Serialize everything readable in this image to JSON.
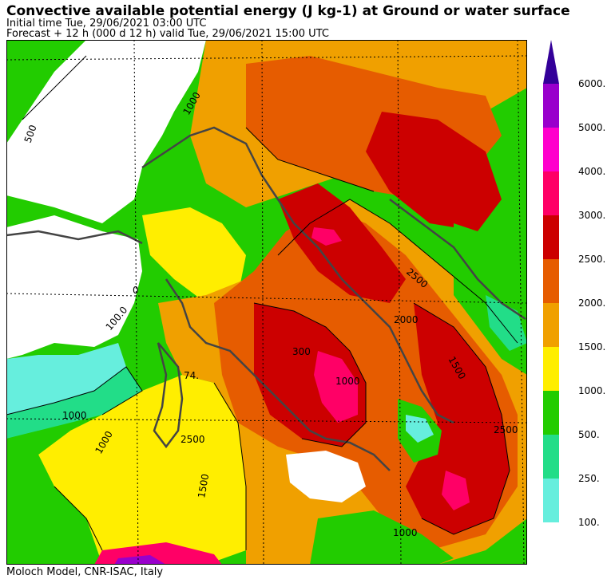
{
  "header": {
    "title": "Convective available potential energy (J kg-1) at Ground or water surface",
    "initial_time": "Initial time  Tue, 29/06/2021  03:00 UTC",
    "forecast": "Forecast  +  12 h  (000 d 12 h)  valid Tue, 29/06/2021 15:00 UTC"
  },
  "footer": {
    "credit": "Moloch Model, CNR-ISAC, Italy"
  },
  "legend": {
    "top_label": "6000.",
    "classes": [
      {
        "label": "5000.",
        "color": "#9900cc"
      },
      {
        "label": "4000.",
        "color": "#ff00cc"
      },
      {
        "label": "3000.",
        "color": "#ff0066"
      },
      {
        "label": "2500.",
        "color": "#cc0000"
      },
      {
        "label": "2000.",
        "color": "#e65c00"
      },
      {
        "label": "1500.",
        "color": "#f0a000"
      },
      {
        "label": "1000.",
        "color": "#ffee00"
      },
      {
        "label": "500.",
        "color": "#22cc00"
      },
      {
        "label": "250.",
        "color": "#22dd88"
      },
      {
        "label": "100.",
        "color": "#66eedd"
      }
    ],
    "arrow_color": "#330099"
  },
  "map_labels": [
    {
      "text": "500"
    },
    {
      "text": "1000"
    },
    {
      "text": "0"
    },
    {
      "text": "100.0"
    },
    {
      "text": "1000"
    },
    {
      "text": "1000"
    },
    {
      "text": "2500"
    },
    {
      "text": "1500"
    },
    {
      "text": "300"
    },
    {
      "text": "1000"
    },
    {
      "text": "2000"
    },
    {
      "text": "2500"
    },
    {
      "text": "1500"
    },
    {
      "text": "2500"
    },
    {
      "text": "1000"
    },
    {
      "text": "74."
    }
  ]
}
